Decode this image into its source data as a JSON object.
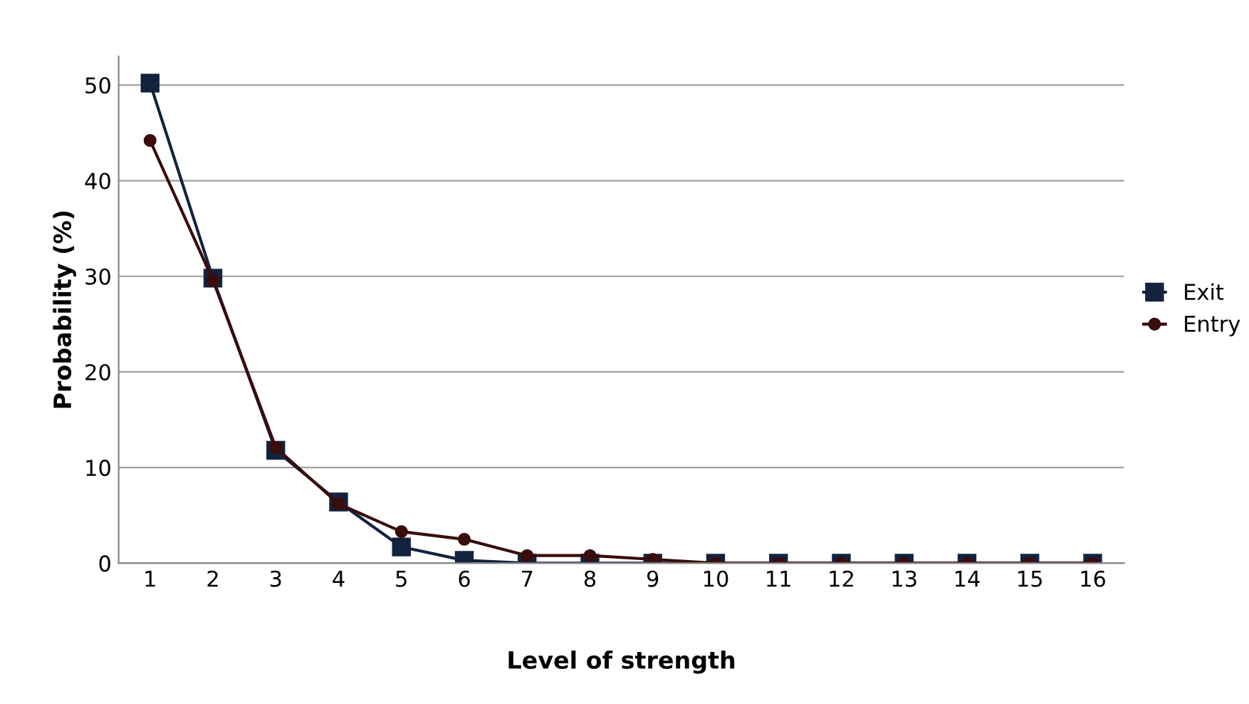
{
  "chart_data": {
    "type": "line",
    "xlabel": "Level of strength",
    "ylabel": "Probability (%)",
    "categories": [
      "1",
      "2",
      "3",
      "4",
      "5",
      "6",
      "7",
      "8",
      "9",
      "10",
      "11",
      "12",
      "13",
      "14",
      "15",
      "16"
    ],
    "series": [
      {
        "name": "Exit",
        "color": "#13233f",
        "marker": "square",
        "values": [
          50.2,
          29.8,
          11.8,
          6.4,
          1.7,
          0.3,
          0,
          0,
          0,
          0,
          0,
          0,
          0,
          0,
          0,
          0
        ]
      },
      {
        "name": "Entry",
        "color": "#3a0c0c",
        "marker": "circle",
        "values": [
          44.2,
          29.6,
          12.1,
          6.2,
          3.3,
          2.5,
          0.8,
          0.8,
          0.4,
          0,
          0,
          0,
          0,
          0,
          0,
          0
        ]
      }
    ],
    "ylim": [
      0,
      53
    ],
    "yticks": [
      0,
      10,
      20,
      30,
      40,
      50
    ],
    "grid": "y",
    "legend": "right",
    "line_style": "solid"
  }
}
